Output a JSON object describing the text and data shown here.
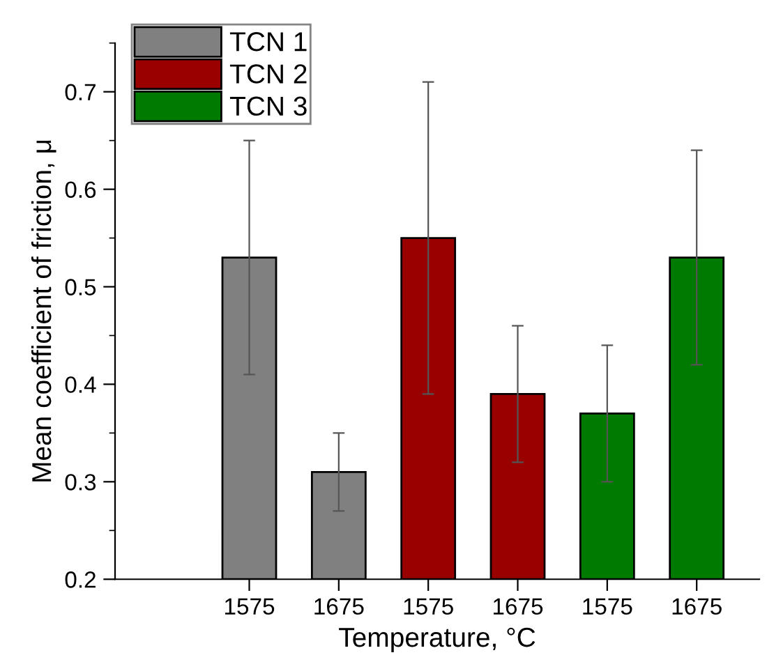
{
  "chart_data": {
    "type": "bar",
    "xlabel": "Temperature, °C",
    "ylabel": "Mean coefficient of friction, μ",
    "categories": [
      "1575",
      "1675",
      "1575",
      "1675",
      "1575",
      "1675"
    ],
    "series": [
      {
        "name": "TCN 1",
        "color": "#808080",
        "values": [
          0.53,
          0.31,
          null,
          null,
          null,
          null
        ],
        "errors": [
          0.12,
          0.04,
          null,
          null,
          null,
          null
        ]
      },
      {
        "name": "TCN 2",
        "color": "#990000",
        "values": [
          null,
          null,
          0.55,
          0.39,
          null,
          null
        ],
        "errors": [
          null,
          null,
          0.16,
          0.07,
          null,
          null
        ]
      },
      {
        "name": "TCN 3",
        "color": "#007a00",
        "values": [
          null,
          null,
          null,
          null,
          0.37,
          0.53
        ],
        "errors": [
          null,
          null,
          null,
          null,
          0.07,
          0.11
        ]
      }
    ],
    "ylim": [
      0.2,
      0.75
    ],
    "yticks": [
      0.2,
      0.3,
      0.4,
      0.5,
      0.6,
      0.7
    ],
    "legend": "top left",
    "grid": false
  }
}
